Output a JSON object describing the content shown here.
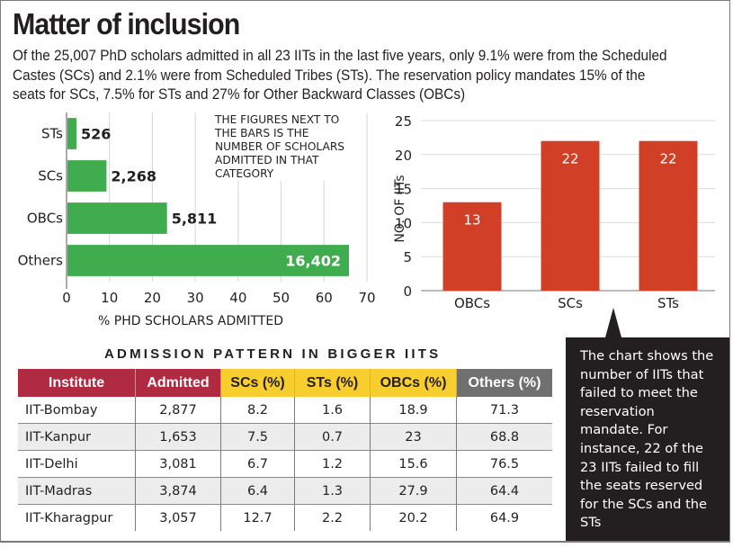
{
  "header": {
    "title": "Matter of inclusion",
    "subtitle": "Of the 25,007 PhD scholars admitted in all 23 IITs in the last five years, only 9.1% were from the Scheduled Castes (SCs) and 2.1% were from Scheduled Tribes (STs). The reservation policy mandates 15% of the seats for SCs, 7.5% for STs and 27% for Other Backward Classes (OBCs)"
  },
  "colors": {
    "green_bar": "#3fad4e",
    "red_bar": "#d23f27",
    "table_header_red": "#b02a42",
    "table_header_yellow": "#f8cd2e",
    "table_header_grey": "#707070",
    "callout_bg": "#231f20"
  },
  "chart_data": [
    {
      "type": "bar",
      "orientation": "horizontal",
      "categories": [
        "STs",
        "SCs",
        "OBCs",
        "Others"
      ],
      "values": [
        2.1,
        9.1,
        23.2,
        65.6
      ],
      "data_labels": [
        "526",
        "2,268",
        "5,811",
        "16,402"
      ],
      "title": "",
      "xlabel": "% PHD SCHOLARS ADMITTED",
      "ylabel": "",
      "xlim": [
        0,
        70
      ],
      "xticks": [
        0,
        10,
        20,
        30,
        40,
        50,
        60,
        70
      ],
      "grid": true,
      "annotation": "THE FIGURES NEXT TO THE BARS IS THE NUMBER OF SCHOLARS ADMITTED IN THAT CATEGORY"
    },
    {
      "type": "bar",
      "orientation": "vertical",
      "categories": [
        "OBCs",
        "SCs",
        "STs"
      ],
      "values": [
        13,
        22,
        22
      ],
      "data_labels": [
        "13",
        "22",
        "22"
      ],
      "title": "",
      "xlabel": "",
      "ylabel": "NO. OF IITs",
      "ylim": [
        0,
        25
      ],
      "yticks": [
        0,
        5,
        10,
        15,
        20,
        25
      ],
      "grid": true
    }
  ],
  "table": {
    "title": "ADMISSION PATTERN IN BIGGER IITS",
    "headers": [
      "Institute",
      "Admitted",
      "SCs (%)",
      "STs (%)",
      "OBCs (%)",
      "Others (%)"
    ],
    "rows": [
      [
        "IIT-Bombay",
        "2,877",
        "8.2",
        "1.6",
        "18.9",
        "71.3"
      ],
      [
        "IIT-Kanpur",
        "1,653",
        "7.5",
        "0.7",
        "23",
        "68.8"
      ],
      [
        "IIT-Delhi",
        "3,081",
        "6.7",
        "1.2",
        "15.6",
        "76.5"
      ],
      [
        "IIT-Madras",
        "3,874",
        "6.4",
        "1.3",
        "27.9",
        "64.4"
      ],
      [
        "IIT-Kharagpur",
        "3,057",
        "12.7",
        "2.2",
        "20.2",
        "64.9"
      ]
    ]
  },
  "callout": {
    "text": "The chart shows the number of IITs that failed to meet the reservation mandate. For instance, 22 of the 23 IITs failed to fill the seats reserved for the SCs and the STs"
  }
}
